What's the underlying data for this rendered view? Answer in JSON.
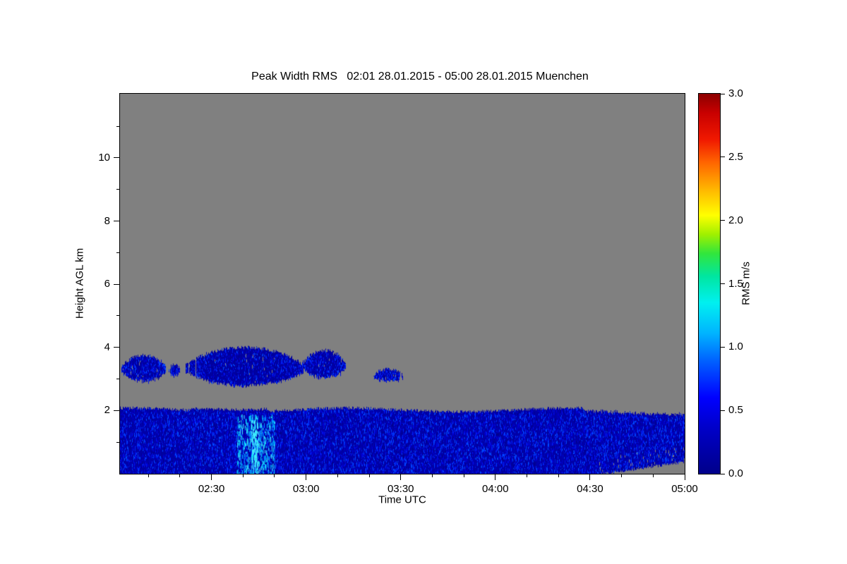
{
  "chart_data": {
    "type": "heatmap",
    "title": "Peak Width RMS   02:01 28.01.2015 - 05:00 28.01.2015 Muenchen",
    "xlabel": "Time UTC",
    "ylabel": "Height AGL km",
    "x_axis": {
      "start_label": "02:01",
      "end_label": "05:00",
      "start_minutes": 121,
      "end_minutes": 300,
      "ticks": [
        {
          "label": "02:30",
          "minutes": 150
        },
        {
          "label": "03:00",
          "minutes": 180
        },
        {
          "label": "03:30",
          "minutes": 210
        },
        {
          "label": "04:00",
          "minutes": 240
        },
        {
          "label": "04:30",
          "minutes": 270
        },
        {
          "label": "05:00",
          "minutes": 300
        }
      ],
      "minor_tick_step_minutes": 10
    },
    "y_axis": {
      "unit": "km",
      "min": 0,
      "max": 12.03,
      "ticks": [
        {
          "label": "2",
          "km": 2
        },
        {
          "label": "4",
          "km": 4
        },
        {
          "label": "6",
          "km": 6
        },
        {
          "label": "8",
          "km": 8
        },
        {
          "label": "10",
          "km": 10
        }
      ],
      "minor_tick_step_km": 1
    },
    "colorbar": {
      "label": "RMS m/s",
      "min": 0.0,
      "max": 3.0,
      "ticks": [
        {
          "label": "0.0",
          "value": 0.0
        },
        {
          "label": "0.5",
          "value": 0.5
        },
        {
          "label": "1.0",
          "value": 1.0
        },
        {
          "label": "1.5",
          "value": 1.5
        },
        {
          "label": "2.0",
          "value": 2.0
        },
        {
          "label": "2.5",
          "value": 2.5
        },
        {
          "label": "3.0",
          "value": 3.0
        }
      ],
      "gradient": [
        {
          "pos": 0.0,
          "color": "#00008a"
        },
        {
          "pos": 0.12,
          "color": "#0000c8"
        },
        {
          "pos": 0.2,
          "color": "#0000ff"
        },
        {
          "pos": 0.3,
          "color": "#0064ff"
        },
        {
          "pos": 0.37,
          "color": "#00b4ff"
        },
        {
          "pos": 0.45,
          "color": "#00f0f0"
        },
        {
          "pos": 0.52,
          "color": "#00e6a0"
        },
        {
          "pos": 0.58,
          "color": "#32e63c"
        },
        {
          "pos": 0.63,
          "color": "#a0f000"
        },
        {
          "pos": 0.68,
          "color": "#ffff00"
        },
        {
          "pos": 0.75,
          "color": "#ffb400"
        },
        {
          "pos": 0.82,
          "color": "#ff6400"
        },
        {
          "pos": 0.88,
          "color": "#f01800"
        },
        {
          "pos": 0.95,
          "color": "#c80000"
        },
        {
          "pos": 1.0,
          "color": "#8c0000"
        }
      ]
    },
    "no_data_color": "#808080",
    "layer_base_color": "#0000a8",
    "layer_speckle_colors": [
      "#00008f",
      "#0000a8",
      "#0000bf",
      "#0000d4",
      "#0011e8",
      "#0026f5",
      "#0048ff"
    ],
    "cyan_streak_colors": [
      "#00a0ff",
      "#00d8ff",
      "#40f0ff"
    ],
    "data_regions": [
      {
        "name": "background-no-data",
        "color": "#808080",
        "description": "gray = no valid signal",
        "extent": {
          "time": [
            "02:01",
            "05:00"
          ],
          "height_km": [
            0,
            12
          ]
        }
      },
      {
        "name": "boundary-layer",
        "rms_ms_range": [
          0.0,
          0.6
        ],
        "typical_rms_ms": 0.2,
        "extent": {
          "time": [
            "02:01",
            "05:00"
          ],
          "height_km": [
            0,
            2.05
          ]
        },
        "description": "continuous dark-blue layer from surface to ~2 km, speckled, lighter cyan vertical streaks near 02:40-02:50"
      },
      {
        "name": "elevated-cloud-patches",
        "rms_ms_range": [
          0.0,
          0.4
        ],
        "extent": {
          "time": [
            "02:02",
            "03:31"
          ],
          "height_km": [
            2.75,
            4.0
          ]
        },
        "description": "scattered ragged dark-blue patches between about 3 and 4 km, ending near 03:31"
      },
      {
        "name": "near-surface-gray-notch",
        "extent": {
          "time": [
            "04:27",
            "05:00"
          ],
          "height_km": [
            0,
            0.4
          ]
        },
        "description": "gray no-data wedge intruding under the boundary layer at the lower right"
      }
    ],
    "elevated_patches": [
      {
        "t": [
          121.5,
          135.5
        ],
        "h": [
          2.95,
          3.75
        ]
      },
      {
        "t": [
          136.5,
          140.0
        ],
        "h": [
          3.15,
          3.45
        ]
      },
      {
        "t": [
          142.0,
          179.0
        ],
        "h": [
          2.8,
          4.0
        ]
      },
      {
        "t": [
          179.0,
          192.5
        ],
        "h": [
          3.05,
          3.9
        ]
      },
      {
        "t": [
          201.5,
          210.5
        ],
        "h": [
          2.95,
          3.3
        ]
      }
    ]
  }
}
